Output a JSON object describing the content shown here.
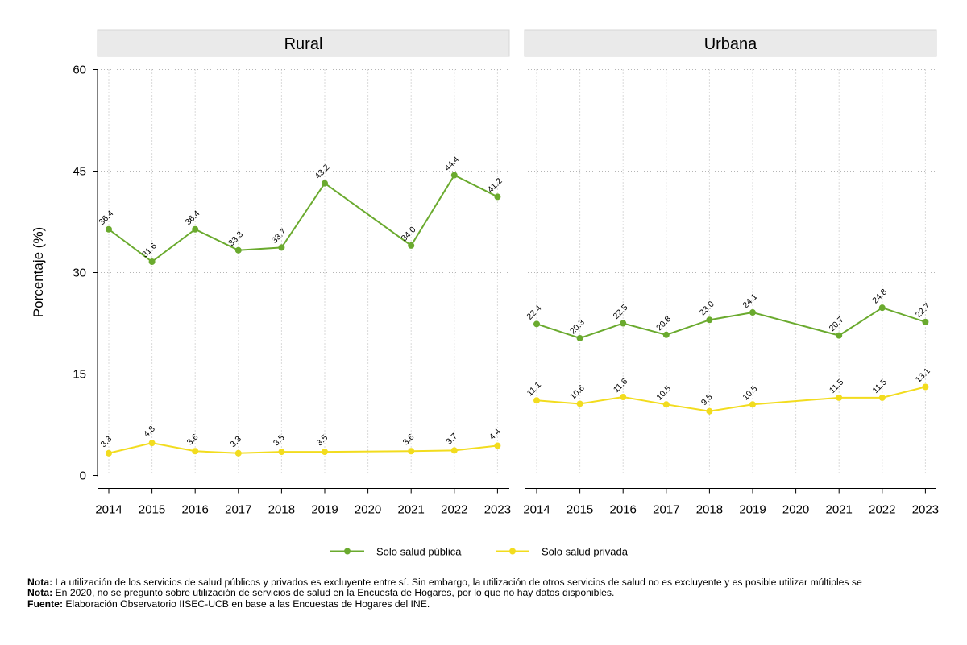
{
  "chart_data": {
    "type": "line",
    "ylabel": "Porcentaje (%)",
    "ylim": [
      0,
      60
    ],
    "yticks": [
      0,
      15,
      30,
      45,
      60
    ],
    "x": [
      2014,
      2015,
      2016,
      2017,
      2018,
      2019,
      2020,
      2021,
      2022,
      2023
    ],
    "x_labels": [
      "2014",
      "2015",
      "2016",
      "2017",
      "2018",
      "2019",
      "2020",
      "2021",
      "2022",
      "2023"
    ],
    "grid": true,
    "legend_position": "bottom",
    "series_styles": [
      {
        "name": "Solo salud pública",
        "color": "#6aaa2e"
      },
      {
        "name": "Solo salud privada",
        "color": "#f2dc1e"
      }
    ],
    "panels": [
      {
        "title": "Rural",
        "series": [
          {
            "name": "Solo salud pública",
            "values": [
              36.4,
              31.6,
              36.4,
              33.3,
              33.7,
              43.2,
              null,
              34.0,
              44.4,
              41.2
            ],
            "labels": [
              "36.4",
              "31.6",
              "36.4",
              "33.3",
              "33.7",
              "43.2",
              "",
              "34.0",
              "44.4",
              "41.2"
            ]
          },
          {
            "name": "Solo salud privada",
            "values": [
              3.3,
              4.8,
              3.6,
              3.3,
              3.5,
              3.5,
              null,
              3.6,
              3.7,
              4.4
            ],
            "labels": [
              "3.3",
              "4.8",
              "3.6",
              "3.3",
              "3.5",
              "3.5",
              "",
              "3.6",
              "3.7",
              "4.4"
            ]
          }
        ]
      },
      {
        "title": "Urbana",
        "series": [
          {
            "name": "Solo salud pública",
            "values": [
              22.4,
              20.3,
              22.5,
              20.8,
              23.0,
              24.1,
              null,
              20.7,
              24.8,
              22.7
            ],
            "labels": [
              "22.4",
              "20.3",
              "22.5",
              "20.8",
              "23.0",
              "24.1",
              "",
              "20.7",
              "24.8",
              "22.7"
            ]
          },
          {
            "name": "Solo salud privada",
            "values": [
              11.1,
              10.6,
              11.6,
              10.5,
              9.5,
              10.5,
              null,
              11.5,
              11.5,
              13.1
            ],
            "labels": [
              "11.1",
              "10.6",
              "11.6",
              "10.5",
              "9.5",
              "10.5",
              "",
              "11.5",
              "11.5",
              "13.1"
            ]
          }
        ]
      }
    ]
  },
  "notes": [
    {
      "label": "Nota:",
      "text": " La utilización de los servicios de salud públicos y privados es excluyente entre sí. Sin embargo, la utilización de otros servicios de salud no es excluyente y es posible utilizar múltiples se"
    },
    {
      "label": "Nota:",
      "text": " En 2020, no se preguntó sobre utilización de servicios de salud en la Encuesta de Hogares, por lo que no hay datos disponibles."
    },
    {
      "label": "Fuente:",
      "text": " Elaboración Observatorio IISEC-UCB en base a las Encuestas de Hogares del INE."
    }
  ]
}
